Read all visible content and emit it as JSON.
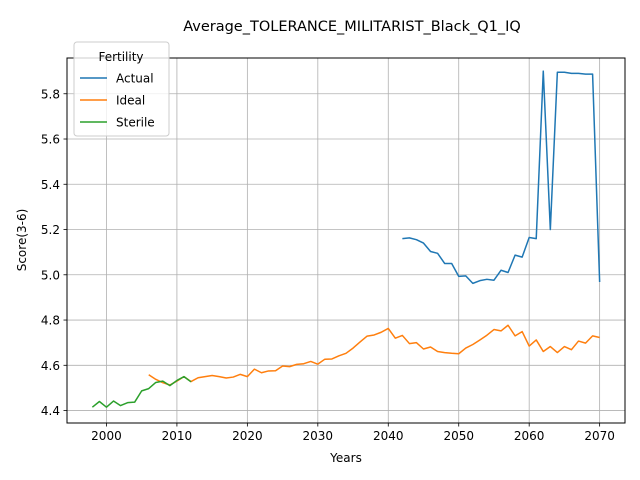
{
  "chart_data": {
    "type": "line",
    "title": "Average_TOLERANCE_MILITARIST_Black_Q1_IQ",
    "xlabel": "Years",
    "ylabel": "Score(3-6)",
    "xlim": [
      1994.4,
      2073.6
    ],
    "ylim": [
      4.345,
      5.958
    ],
    "xticks": [
      2000,
      2010,
      2020,
      2030,
      2040,
      2050,
      2060,
      2070
    ],
    "yticks": [
      4.4,
      4.6,
      4.8,
      5.0,
      5.2,
      5.4,
      5.6,
      5.8
    ],
    "ytick_labels": [
      "4.4",
      "4.6",
      "4.8",
      "5.0",
      "5.2",
      "5.4",
      "5.6",
      "5.8"
    ],
    "grid": true,
    "legend": {
      "title": "Fertility",
      "placement": "top-left"
    },
    "series": [
      {
        "name": "Actual",
        "color": "#1f77b4",
        "x": [
          2042,
          2043,
          2044,
          2045,
          2046,
          2047,
          2048,
          2049,
          2050,
          2051,
          2052,
          2053,
          2054,
          2055,
          2056,
          2057,
          2058,
          2059,
          2060,
          2061,
          2062,
          2063,
          2064,
          2065,
          2066,
          2067,
          2068,
          2069,
          2070
        ],
        "y": [
          5.16,
          5.163,
          5.155,
          5.14,
          5.103,
          5.095,
          5.05,
          5.05,
          4.993,
          4.995,
          4.962,
          4.974,
          4.98,
          4.976,
          5.02,
          5.01,
          5.087,
          5.078,
          5.165,
          5.16,
          5.9,
          5.2,
          5.895,
          5.895,
          5.89,
          5.89,
          5.887,
          5.887,
          4.968
        ]
      },
      {
        "name": "Ideal",
        "color": "#ff7f0e",
        "x": [
          2006,
          2007,
          2008,
          2009,
          2010,
          2011,
          2012,
          2013,
          2014,
          2015,
          2016,
          2017,
          2018,
          2019,
          2020,
          2021,
          2022,
          2023,
          2024,
          2025,
          2026,
          2027,
          2028,
          2029,
          2030,
          2031,
          2032,
          2033,
          2034,
          2035,
          2036,
          2037,
          2038,
          2039,
          2040,
          2041,
          2042,
          2043,
          2044,
          2045,
          2046,
          2047,
          2048,
          2049,
          2050,
          2051,
          2052,
          2053,
          2054,
          2055,
          2056,
          2057,
          2058,
          2059,
          2060,
          2061,
          2062,
          2063,
          2064,
          2065,
          2066,
          2067,
          2068,
          2069,
          2070
        ],
        "y": [
          4.558,
          4.538,
          4.523,
          4.513,
          4.53,
          4.55,
          4.528,
          4.545,
          4.55,
          4.555,
          4.55,
          4.544,
          4.548,
          4.56,
          4.55,
          4.583,
          4.567,
          4.575,
          4.576,
          4.597,
          4.594,
          4.604,
          4.607,
          4.617,
          4.605,
          4.627,
          4.628,
          4.642,
          4.653,
          4.676,
          4.703,
          4.729,
          4.734,
          4.746,
          4.763,
          4.72,
          4.732,
          4.696,
          4.7,
          4.672,
          4.681,
          4.661,
          4.656,
          4.653,
          4.651,
          4.676,
          4.692,
          4.712,
          4.733,
          4.758,
          4.752,
          4.777,
          4.73,
          4.749,
          4.685,
          4.712,
          4.661,
          4.683,
          4.656,
          4.683,
          4.669,
          4.707,
          4.698,
          4.73,
          4.723
        ]
      },
      {
        "name": "Sterile",
        "color": "#2ca02c",
        "x": [
          1998,
          1999,
          2000,
          2001,
          2002,
          2003,
          2004,
          2005,
          2006,
          2007,
          2008,
          2009,
          2010,
          2011,
          2012
        ],
        "y": [
          4.415,
          4.44,
          4.415,
          4.442,
          4.422,
          4.435,
          4.437,
          4.487,
          4.497,
          4.524,
          4.53,
          4.51,
          4.533,
          4.55,
          4.527
        ]
      }
    ]
  }
}
